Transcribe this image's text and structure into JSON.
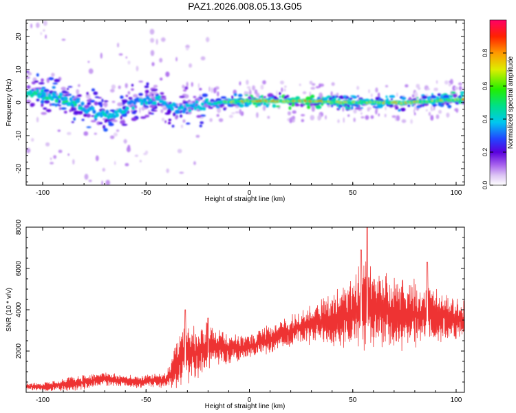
{
  "title": "PAZ1.2026.008.05.13.G05",
  "chart_data": [
    {
      "type": "heatmap",
      "name": "spectrogram",
      "xlabel": "Height of straight line (km)",
      "ylabel": "Frequency (Hz)",
      "xlim": [
        -108,
        104
      ],
      "ylim": [
        -25,
        25
      ],
      "xticks": [
        -100,
        -50,
        0,
        50,
        100
      ],
      "xtick_labels": [
        "-100",
        "-50",
        "0",
        "50",
        "100"
      ],
      "yticks": [
        -20,
        -10,
        0,
        10,
        20
      ],
      "ytick_labels": [
        "-20",
        "-10",
        "0",
        "10",
        "20"
      ],
      "colorbar": {
        "label": "Normalized spectral amplitude",
        "range": [
          0,
          1
        ],
        "ticks": [
          0.0,
          0.2,
          0.4,
          0.6,
          0.8
        ],
        "tick_labels": [
          "0.0",
          "0.2",
          "0.4",
          "0.6",
          "0.8"
        ]
      },
      "ridge": {
        "x": [
          -105,
          -95,
          -85,
          -75,
          -65,
          -55,
          -45,
          -35,
          -25,
          -15,
          0,
          15,
          30,
          45,
          60,
          75,
          90,
          104
        ],
        "frequency_hz": [
          3,
          2,
          0,
          -3,
          -4,
          0,
          1,
          -2,
          -1,
          0,
          0.5,
          0.5,
          0.5,
          0,
          0,
          0,
          0.5,
          1
        ],
        "peak_amplitude": [
          0.55,
          0.55,
          0.55,
          0.5,
          0.5,
          0.45,
          0.45,
          0.45,
          0.45,
          0.6,
          0.9,
          0.95,
          0.95,
          0.8,
          0.75,
          0.8,
          0.75,
          0.85
        ]
      }
    },
    {
      "type": "line",
      "name": "snr",
      "xlabel": "Height of straight line (km)",
      "ylabel": "SNR (10 * v/v)",
      "xlim": [
        -108,
        104
      ],
      "ylim": [
        0,
        8000
      ],
      "xticks": [
        -100,
        -50,
        0,
        50,
        100
      ],
      "xtick_labels": [
        "-100",
        "-50",
        "0",
        "50",
        "100"
      ],
      "yticks": [
        2000,
        4000,
        6000,
        8000
      ],
      "ytick_labels": [
        "2000",
        "4000",
        "6000",
        "8000"
      ],
      "color": "#ee3333",
      "envelope": {
        "x": [
          -108,
          -100,
          -80,
          -70,
          -55,
          -40,
          -36,
          -32,
          -25,
          -20,
          -10,
          0,
          10,
          20,
          25,
          35,
          40,
          45,
          50,
          55,
          57,
          60,
          70,
          80,
          90,
          100,
          104
        ],
        "mean": [
          300,
          250,
          500,
          650,
          500,
          600,
          1200,
          1800,
          2000,
          2200,
          2100,
          2200,
          2600,
          3000,
          3100,
          3500,
          3400,
          3800,
          3800,
          4200,
          4200,
          4000,
          3800,
          3800,
          3700,
          3600,
          3500
        ],
        "spread": [
          150,
          200,
          350,
          300,
          250,
          350,
          900,
          1300,
          1300,
          1100,
          700,
          500,
          600,
          700,
          800,
          900,
          1300,
          1500,
          1900,
          1900,
          2100,
          1600,
          1700,
          1500,
          1200,
          900,
          800
        ]
      },
      "peaks": [
        {
          "x": 57,
          "y": 8000
        },
        {
          "x": -31,
          "y": 4000
        },
        {
          "x": -20,
          "y": 3600
        },
        {
          "x": 54,
          "y": 6900
        },
        {
          "x": 86,
          "y": 6300
        }
      ]
    }
  ]
}
